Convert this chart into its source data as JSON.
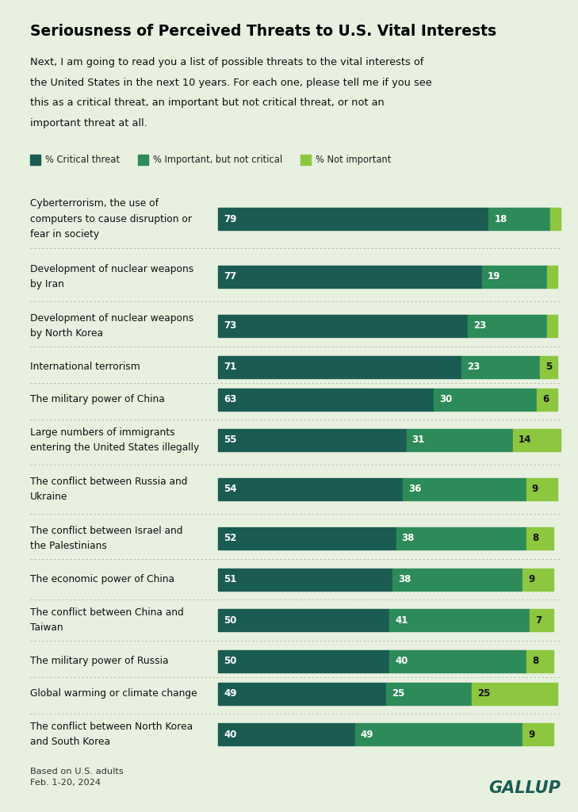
{
  "title": "Seriousness of Perceived Threats to U.S. Vital Interests",
  "subtitle": "Next, I am going to read you a list of possible threats to the vital interests of the United States in the next 10 years. For each one, please tell me if you see this as a critical threat, an important but not critical threat, or not an important threat at all.",
  "footnote": "Based on U.S. adults\nFeb. 1-20, 2024",
  "background_color": "#e8f0e0",
  "colors": {
    "critical": "#1a5c52",
    "important": "#2d8b5a",
    "not_important": "#8dc63f"
  },
  "legend": [
    {
      "label": "% Critical threat",
      "color": "#1a5c52"
    },
    {
      "label": "% Important, but not critical",
      "color": "#2d8b5a"
    },
    {
      "label": "% Not important",
      "color": "#8dc63f"
    }
  ],
  "categories": [
    "Cyberterrorism, the use of\ncomputers to cause disruption or\nfear in society",
    "Development of nuclear weapons\nby Iran",
    "Development of nuclear weapons\nby North Korea",
    "International terrorism",
    "The military power of China",
    "Large numbers of immigrants\nentering the United States illegally",
    "The conflict between Russia and\nUkraine",
    "The conflict between Israel and\nthe Palestinians",
    "The economic power of China",
    "The conflict between China and\nTaiwan",
    "The military power of Russia",
    "Global warming or climate change",
    "The conflict between North Korea\nand South Korea"
  ],
  "critical": [
    79,
    77,
    73,
    71,
    63,
    55,
    54,
    52,
    51,
    50,
    50,
    49,
    40
  ],
  "important": [
    18,
    19,
    23,
    23,
    30,
    31,
    36,
    38,
    38,
    41,
    40,
    25,
    49
  ],
  "not_important": [
    3,
    3,
    3,
    5,
    6,
    14,
    9,
    8,
    9,
    7,
    8,
    25,
    9
  ]
}
